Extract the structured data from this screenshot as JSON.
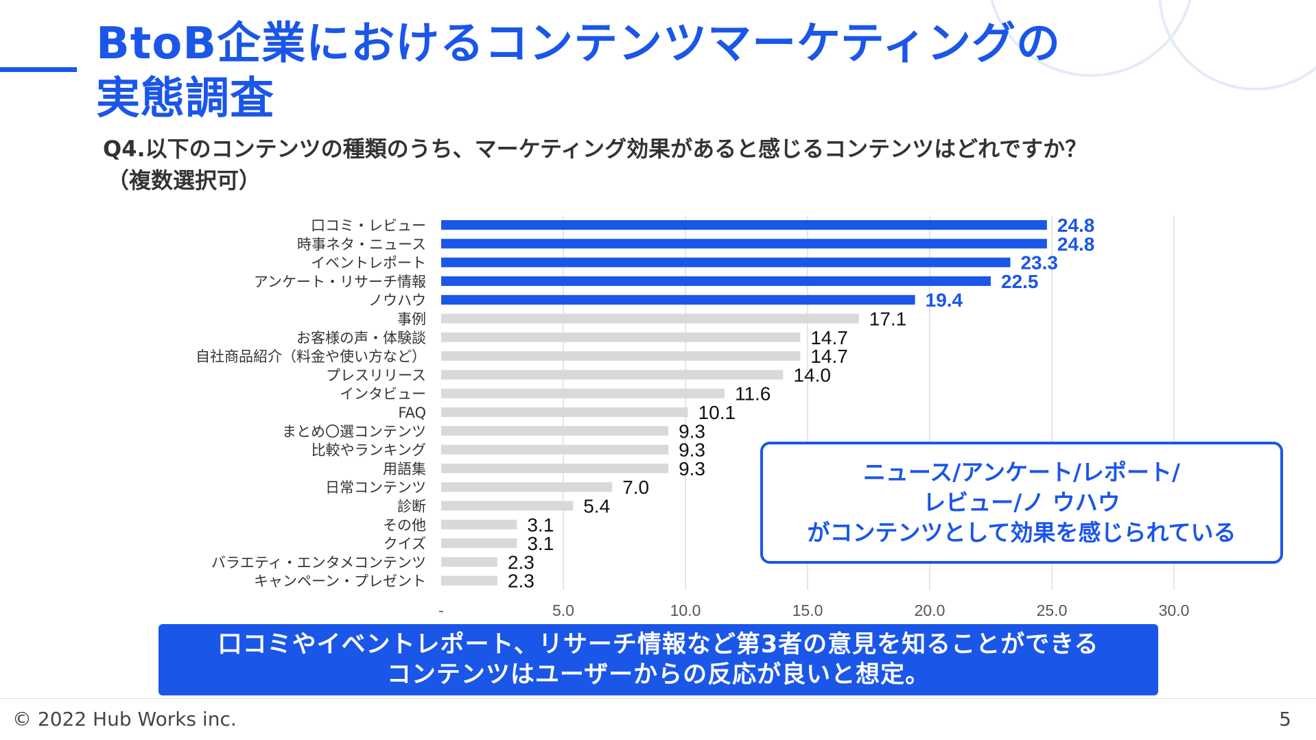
{
  "slide": {
    "title_line1": "BtoB企業におけるコンテンツマーケティングの",
    "title_line2": "実態調査",
    "question_line1": "Q4.以下のコンテンツの種類のうち、マーケティング効果があると感じるコンテンツはどれですか？",
    "question_line2": "（複数選択可）",
    "callout_lines": [
      "ニュース/アンケート/レポート/",
      "レビュー/ノ ウハウ",
      "がコンテンツとして効果を感じられている"
    ],
    "banner_lines": [
      "口コミやイベントレポート、リサーチ情報など第3者の意見を知ることができる",
      "コンテンツはユーザーからの反応が良いと想定。"
    ],
    "copyright": "© 2022 Hub Works inc.",
    "page_number": "5"
  },
  "colors": {
    "accent": "#1a56e8",
    "highlight_bar": "#1a56e8",
    "normal_bar": "#d9d9d9",
    "gridline": "#e6e6e6",
    "deco_circle": "#e3ebf7"
  },
  "chart_data": {
    "type": "bar",
    "orientation": "horizontal",
    "categories": [
      "口コミ・レビュー",
      "時事ネタ・ニュース",
      "イベントレポート",
      "アンケート・リサーチ情報",
      "ノウハウ",
      "事例",
      "お客様の声・体験談",
      "自社商品紹介（料金や使い方など）",
      "プレスリリース",
      "インタビュー",
      "FAQ",
      "まとめ〇選コンテンツ",
      "比較やランキング",
      "用語集",
      "日常コンテンツ",
      "診断",
      "その他",
      "クイズ",
      "バラエティ・エンタメコンテンツ",
      "キャンペーン・プレゼント"
    ],
    "values": [
      24.8,
      24.8,
      23.3,
      22.5,
      19.4,
      17.1,
      14.7,
      14.7,
      14.0,
      11.6,
      10.1,
      9.3,
      9.3,
      9.3,
      7.0,
      5.4,
      3.1,
      3.1,
      2.3,
      2.3
    ],
    "value_labels": [
      "24.8",
      "24.8",
      "23.3",
      "22.5",
      "19.4",
      "17.1",
      "14.7",
      "14.7",
      "14.0",
      "11.6",
      "10.1",
      "9.3",
      "9.3",
      "9.3",
      "7.0",
      "5.4",
      "3.1",
      "3.1",
      "2.3",
      "2.3"
    ],
    "highlighted": [
      true,
      true,
      true,
      true,
      true,
      false,
      false,
      false,
      false,
      false,
      false,
      false,
      false,
      false,
      false,
      false,
      false,
      false,
      false,
      false
    ],
    "xlim": [
      0,
      30
    ],
    "x_ticks": [
      0,
      5,
      10,
      15,
      20,
      25,
      30
    ],
    "x_tick_labels": [
      "-",
      "5.0",
      "10.0",
      "15.0",
      "20.0",
      "25.0",
      "30.0"
    ],
    "grid": true,
    "title": "",
    "xlabel": "",
    "ylabel": ""
  }
}
